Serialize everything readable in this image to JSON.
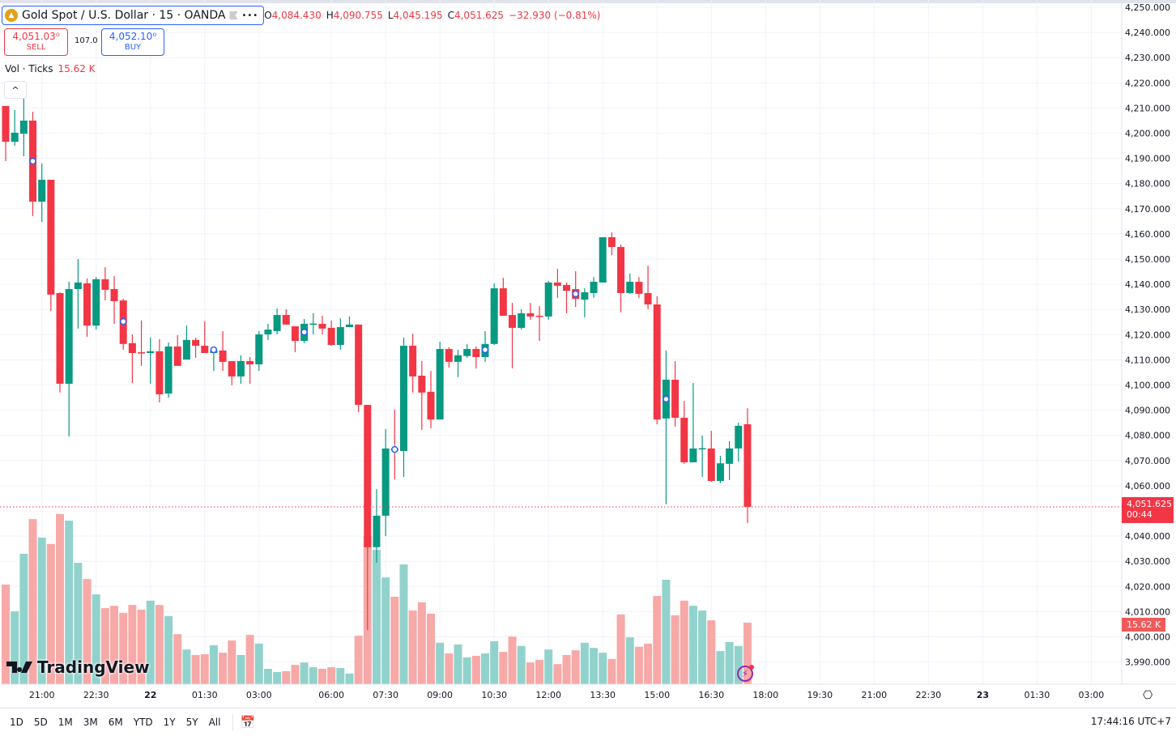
{
  "header": {
    "symbol": "Gold Spot / U.S. Dollar · 15 · OANDA",
    "more_icon": "•••",
    "open_label": "O",
    "open": "4,084.430",
    "high_label": "H",
    "high": "4,090.755",
    "low_label": "L",
    "low": "4,045.195",
    "close_label": "C",
    "close": "4,051.625",
    "change": "−32.930 (−0.81%)"
  },
  "trade": {
    "sell_price": "4,051.03⁰",
    "sell_label": "SELL",
    "spread": "107.0",
    "buy_price": "4,052.10⁰",
    "buy_label": "BUY"
  },
  "volume_legend": {
    "name": "Vol · Ticks",
    "value": "15.62 K"
  },
  "logo_text": "TradingView",
  "price_label": {
    "price": "4,051.625",
    "countdown": "00:44"
  },
  "volume_label": "15.62 K",
  "bottom": {
    "ranges": [
      "1D",
      "5D",
      "1M",
      "3M",
      "6M",
      "YTD",
      "1Y",
      "5Y",
      "All"
    ],
    "clock": "17:44:16 UTC+7"
  },
  "colors": {
    "up": "#089981",
    "down": "#f23645",
    "vol_up": "#92d2cc",
    "vol_down": "#f7a9a7",
    "marker": "#2962ff"
  },
  "chart_data": {
    "type": "candlestick",
    "interval": "15",
    "y_range": [
      3985,
      4252
    ],
    "y_ticks": [
      4250,
      4240,
      4230,
      4220,
      4210,
      4200,
      4190,
      4180,
      4170,
      4160,
      4150,
      4140,
      4130,
      4120,
      4110,
      4100,
      4090,
      4080,
      4070,
      4060,
      4050,
      4040,
      4030,
      4020,
      4010,
      4000,
      3990
    ],
    "x_labels": [
      {
        "label": "21:00",
        "bar": 4
      },
      {
        "label": "22:30",
        "bar": 10
      },
      {
        "label": "22",
        "bar": 16,
        "bold": true
      },
      {
        "label": "01:30",
        "bar": 22
      },
      {
        "label": "03:00",
        "bar": 28
      },
      {
        "label": "06:00",
        "bar": 36
      },
      {
        "label": "07:30",
        "bar": 42
      },
      {
        "label": "09:00",
        "bar": 48
      },
      {
        "label": "10:30",
        "bar": 54
      },
      {
        "label": "12:00",
        "bar": 60
      },
      {
        "label": "13:30",
        "bar": 66
      },
      {
        "label": "15:00",
        "bar": 72
      },
      {
        "label": "16:30",
        "bar": 78
      },
      {
        "label": "18:00",
        "bar": 84
      },
      {
        "label": "19:30",
        "bar": 90
      },
      {
        "label": "21:00",
        "bar": 96
      },
      {
        "label": "22:30",
        "bar": 102
      },
      {
        "label": "23",
        "bar": 108,
        "bold": true
      },
      {
        "label": "01:30",
        "bar": 114
      },
      {
        "label": "03:00",
        "bar": 120
      }
    ],
    "last_price": 4051.625,
    "ohlc": [
      [
        4210.8,
        4210.8,
        4188.9,
        4196.6
      ],
      [
        4196.6,
        4209.2,
        4195.0,
        4200.2
      ],
      [
        4199.8,
        4214.3,
        4190.8,
        4205.0
      ],
      [
        4205.0,
        4208.5,
        4167.1,
        4172.8
      ],
      [
        4172.8,
        4188.0,
        4164.8,
        4181.5
      ],
      [
        4181.5,
        4181.5,
        4129.4,
        4135.9
      ],
      [
        4136.5,
        4136.8,
        4097.0,
        4100.5
      ],
      [
        4100.5,
        4141.0,
        4079.6,
        4138.1
      ],
      [
        4138.1,
        4150.0,
        4122.4,
        4140.7
      ],
      [
        4140.4,
        4142.3,
        4119.1,
        4123.6
      ],
      [
        4123.6,
        4142.9,
        4122.0,
        4142.0
      ],
      [
        4142.0,
        4146.8,
        4133.6,
        4137.8
      ],
      [
        4138.1,
        4143.3,
        4124.3,
        4133.3
      ],
      [
        4133.6,
        4134.3,
        4114.0,
        4116.3
      ],
      [
        4116.6,
        4120.1,
        4100.8,
        4112.7
      ],
      [
        4113.0,
        4125.6,
        4107.6,
        4112.7
      ],
      [
        4112.7,
        4118.8,
        4100.5,
        4113.4
      ],
      [
        4113.4,
        4118.2,
        4093.1,
        4096.3
      ],
      [
        4096.6,
        4116.9,
        4095.0,
        4115.3
      ],
      [
        4115.3,
        4119.8,
        4107.6,
        4107.6
      ],
      [
        4110.1,
        4123.6,
        4110.1,
        4117.9
      ],
      [
        4117.9,
        4118.8,
        4110.8,
        4115.6
      ],
      [
        4115.6,
        4125.3,
        4112.7,
        4112.7
      ],
      [
        4112.7,
        4113.7,
        4105.6,
        4113.7
      ],
      [
        4113.7,
        4121.4,
        4105.6,
        4109.2
      ],
      [
        4109.5,
        4109.5,
        4099.9,
        4103.4
      ],
      [
        4103.4,
        4111.8,
        4100.5,
        4109.5
      ],
      [
        4109.5,
        4111.1,
        4100.5,
        4108.2
      ],
      [
        4108.2,
        4121.4,
        4105.6,
        4120.1
      ],
      [
        4120.1,
        4124.3,
        4117.9,
        4122.0
      ],
      [
        4121.4,
        4130.4,
        4120.1,
        4127.8
      ],
      [
        4127.8,
        4130.1,
        4124.0,
        4124.0
      ],
      [
        4123.3,
        4123.3,
        4113.0,
        4117.5
      ],
      [
        4117.5,
        4126.2,
        4116.6,
        4124.3
      ],
      [
        4124.3,
        4128.5,
        4120.1,
        4124.4
      ],
      [
        4124.3,
        4127.5,
        4120.1,
        4122.4
      ],
      [
        4122.7,
        4125.6,
        4115.6,
        4115.9
      ],
      [
        4115.9,
        4126.5,
        4114.0,
        4123.0
      ],
      [
        4123.0,
        4127.2,
        4123.0,
        4124.0
      ],
      [
        4124.0,
        4124.0,
        4089.2,
        4092.1
      ],
      [
        4092.1,
        4092.1,
        4002.7,
        4035.6
      ],
      [
        4035.6,
        4058.7,
        4029.4,
        4048.1
      ],
      [
        4048.1,
        4082.5,
        4040.0,
        4074.8
      ],
      [
        4074.8,
        4090.2,
        4062.5,
        4074.2
      ],
      [
        4073.8,
        4118.8,
        4063.5,
        4115.6
      ],
      [
        4115.6,
        4120.4,
        4097.0,
        4103.4
      ],
      [
        4103.7,
        4109.5,
        4082.2,
        4097.0
      ],
      [
        4097.3,
        4105.6,
        4082.8,
        4086.3
      ],
      [
        4086.3,
        4117.2,
        4086.3,
        4114.3
      ],
      [
        4114.3,
        4115.0,
        4106.9,
        4109.2
      ],
      [
        4109.2,
        4114.0,
        4103.1,
        4111.8
      ],
      [
        4111.5,
        4116.3,
        4110.8,
        4114.3
      ],
      [
        4114.3,
        4115.3,
        4106.6,
        4111.1
      ],
      [
        4111.1,
        4121.4,
        4109.2,
        4116.3
      ],
      [
        4116.3,
        4140.4,
        4115.9,
        4138.4
      ],
      [
        4138.4,
        4142.6,
        4127.5,
        4127.5
      ],
      [
        4127.8,
        4132.6,
        4106.6,
        4122.7
      ],
      [
        4122.7,
        4130.1,
        4122.0,
        4128.5
      ],
      [
        4128.5,
        4132.6,
        4125.9,
        4127.2
      ],
      [
        4127.5,
        4131.3,
        4117.5,
        4127.4
      ],
      [
        4127.2,
        4141.3,
        4125.9,
        4140.7
      ],
      [
        4140.7,
        4146.1,
        4134.6,
        4139.4
      ],
      [
        4139.7,
        4140.7,
        4128.5,
        4137.4
      ],
      [
        4138.1,
        4145.2,
        4131.0,
        4134.2
      ],
      [
        4133.9,
        4138.4,
        4126.9,
        4136.8
      ],
      [
        4136.5,
        4142.9,
        4134.6,
        4141.0
      ],
      [
        4140.7,
        4158.7,
        4140.7,
        4158.7
      ],
      [
        4158.7,
        4160.6,
        4151.6,
        4154.8
      ],
      [
        4154.8,
        4155.8,
        4128.8,
        4136.5
      ],
      [
        4136.5,
        4144.2,
        4136.2,
        4141.0
      ],
      [
        4141.0,
        4142.9,
        4134.6,
        4136.2
      ],
      [
        4136.5,
        4147.4,
        4130.1,
        4132.0
      ],
      [
        4132.0,
        4135.2,
        4084.4,
        4086.3
      ],
      [
        4086.7,
        4113.7,
        4052.6,
        4102.1
      ],
      [
        4102.1,
        4109.5,
        4083.5,
        4087.0
      ],
      [
        4087.0,
        4093.7,
        4068.7,
        4069.3
      ],
      [
        4069.3,
        4100.8,
        4069.3,
        4074.8
      ],
      [
        4074.8,
        4079.9,
        4063.5,
        4074.9
      ],
      [
        4074.8,
        4081.8,
        4061.6,
        4061.9
      ],
      [
        4061.9,
        4071.9,
        4061.1,
        4068.9
      ],
      [
        4068.7,
        4077.7,
        4062.2,
        4074.8
      ],
      [
        4074.8,
        4085.0,
        4069.6,
        4083.8
      ],
      [
        4084.43,
        4090.755,
        4045.195,
        4051.625
      ]
    ],
    "volume_k": [
      25.3,
      18.5,
      33.1,
      41.9,
      37.2,
      35.6,
      43.2,
      41.5,
      30.8,
      26.7,
      22.8,
      19.3,
      19.9,
      18.1,
      20.1,
      18.9,
      21.2,
      20.1,
      17.3,
      12.7,
      8.8,
      7.4,
      7.6,
      9.9,
      8.0,
      11.1,
      7.4,
      12.5,
      10.3,
      3.9,
      3.1,
      3.3,
      4.9,
      5.5,
      4.3,
      3.9,
      4.3,
      4.1,
      2.7,
      12.3,
      37.6,
      34.1,
      27.1,
      22.2,
      30.4,
      18.7,
      20.8,
      17.9,
      10.5,
      7.8,
      10.1,
      6.8,
      7.2,
      7.8,
      10.9,
      8.2,
      12.1,
      9.7,
      5.5,
      6.2,
      8.8,
      5.1,
      7.4,
      8.6,
      10.5,
      9.2,
      8.0,
      6.4,
      17.7,
      11.9,
      9.5,
      10.3,
      22.4,
      26.5,
      17.5,
      21.2,
      19.9,
      18.7,
      16.2,
      8.4,
      10.7,
      9.7,
      15.62
    ],
    "event_markers": [
      {
        "bar": 3,
        "price": 4188.9
      },
      {
        "bar": 13,
        "price": 4125.2
      },
      {
        "bar": 23,
        "price": 4114.0
      },
      {
        "bar": 33,
        "price": 4121.0
      },
      {
        "bar": 43,
        "price": 4074.4
      },
      {
        "bar": 53,
        "price": 4114.0
      },
      {
        "bar": 63,
        "price": 4136.2
      },
      {
        "bar": 73,
        "price": 4094.4
      }
    ]
  }
}
